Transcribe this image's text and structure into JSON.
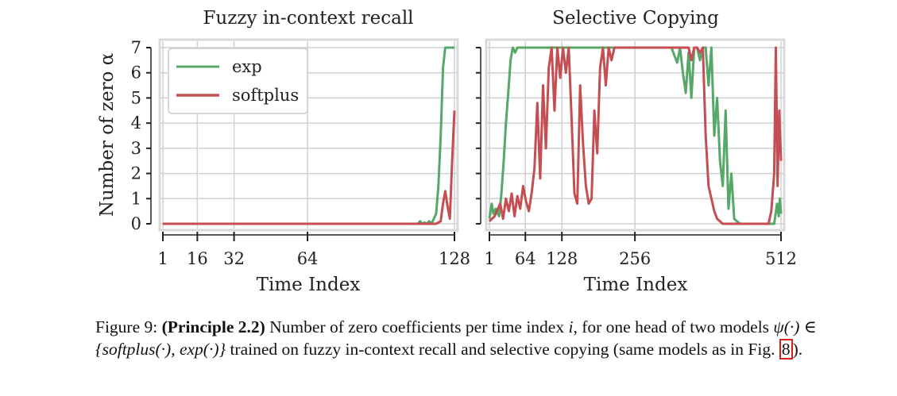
{
  "chart_data": [
    {
      "type": "line",
      "title": "Fuzzy in-context recall",
      "xlabel": "Time Index",
      "ylabel": "Number of zero α",
      "xlim": [
        1,
        128
      ],
      "ylim": [
        0,
        7
      ],
      "xticks": [
        1,
        16,
        32,
        64,
        128
      ],
      "yticks": [
        0,
        1,
        2,
        3,
        4,
        5,
        6,
        7
      ],
      "grid": true,
      "legend": "top-left",
      "series": [
        {
          "name": "exp",
          "color": "#55a868",
          "x": [
            1,
            100,
            112,
            113,
            114,
            115,
            116,
            117,
            118,
            119,
            120,
            121,
            122,
            123,
            124,
            125,
            126,
            127,
            128
          ],
          "y": [
            0,
            0,
            0,
            0.1,
            0,
            0.05,
            0,
            0.1,
            0,
            0.2,
            0.4,
            1.5,
            3.5,
            6.2,
            7,
            7,
            7,
            7,
            7
          ]
        },
        {
          "name": "softplus",
          "color": "#c44e52",
          "x": [
            1,
            50,
            110,
            118,
            120,
            122,
            123,
            124,
            125,
            126,
            127,
            128
          ],
          "y": [
            0,
            0,
            0,
            0,
            0,
            0.1,
            0.8,
            1.3,
            0.7,
            0.2,
            2.5,
            4.5
          ]
        }
      ]
    },
    {
      "type": "line",
      "title": "Selective Copying",
      "xlabel": "Time Index",
      "ylabel": "",
      "xlim": [
        1,
        512
      ],
      "ylim": [
        0,
        7
      ],
      "xticks": [
        1,
        64,
        128,
        256,
        512
      ],
      "yticks": [
        0,
        1,
        2,
        3,
        4,
        5,
        6,
        7
      ],
      "grid": true,
      "series": [
        {
          "name": "exp",
          "color": "#55a868",
          "x": [
            1,
            5,
            8,
            12,
            18,
            22,
            26,
            30,
            34,
            38,
            42,
            46,
            50,
            54,
            60,
            70,
            100,
            150,
            200,
            250,
            300,
            320,
            330,
            335,
            340,
            345,
            350,
            355,
            360,
            365,
            370,
            375,
            380,
            385,
            390,
            395,
            400,
            405,
            410,
            415,
            420,
            425,
            430,
            440,
            450,
            460,
            480,
            500,
            505,
            508,
            510,
            512
          ],
          "y": [
            0.2,
            0.8,
            0.4,
            0.6,
            0.3,
            1.2,
            2.5,
            4.0,
            5.2,
            6.5,
            7,
            6.8,
            7,
            7,
            7,
            7,
            7,
            7,
            7,
            7,
            7,
            7,
            6.4,
            7,
            6.0,
            5.2,
            6.8,
            5.0,
            7,
            7,
            6.5,
            7,
            7,
            5.5,
            7,
            3.5,
            5.0,
            2.5,
            1.5,
            4.5,
            0.6,
            2.0,
            0.2,
            0,
            0,
            0,
            0,
            0,
            0.8,
            0.3,
            1.0,
            0.4
          ]
        },
        {
          "name": "softplus",
          "color": "#c44e52",
          "x": [
            1,
            10,
            20,
            25,
            30,
            35,
            40,
            45,
            50,
            55,
            60,
            65,
            70,
            75,
            80,
            85,
            90,
            95,
            100,
            105,
            110,
            115,
            120,
            125,
            130,
            135,
            140,
            145,
            150,
            155,
            160,
            165,
            170,
            175,
            180,
            185,
            190,
            195,
            200,
            205,
            210,
            215,
            220,
            225,
            230,
            240,
            250,
            260,
            300,
            340,
            350,
            355,
            360,
            365,
            370,
            375,
            380,
            385,
            390,
            395,
            400,
            410,
            420,
            450,
            490,
            495,
            500,
            503,
            506,
            509,
            512
          ],
          "y": [
            0.1,
            0.3,
            0.8,
            0.2,
            1.0,
            0.5,
            1.2,
            0.3,
            1.1,
            0.6,
            1.5,
            0.9,
            0.5,
            1.2,
            2.2,
            4.8,
            1.8,
            5.5,
            3.0,
            6.2,
            7,
            4.5,
            7,
            5.8,
            7,
            6.0,
            7,
            4.2,
            1.2,
            0.8,
            5.5,
            3.2,
            1.5,
            0.8,
            1.0,
            4.5,
            2.8,
            6.2,
            7,
            5.5,
            7,
            6.5,
            7,
            7,
            7,
            7,
            7,
            7,
            7,
            7,
            7,
            6.5,
            7,
            7,
            6.8,
            7,
            3.5,
            1.5,
            1.0,
            0.5,
            0.2,
            0,
            0,
            0,
            0,
            0.5,
            2.0,
            7,
            1.5,
            4.5,
            2.5
          ]
        }
      ]
    }
  ],
  "caption": {
    "fig_label": "Figure 9:",
    "principle": "(Principle 2.2)",
    "text_1": " Number of zero coefficients per time index ",
    "math_i": "i",
    "text_2": ", for one head of two models ",
    "math_psi": "ψ(·) ∈ {softplus(·), exp(·)}",
    "text_3": " trained on fuzzy in-context recall and selective copying (same models as in Fig. ",
    "ref": "8",
    "text_4": ")."
  }
}
